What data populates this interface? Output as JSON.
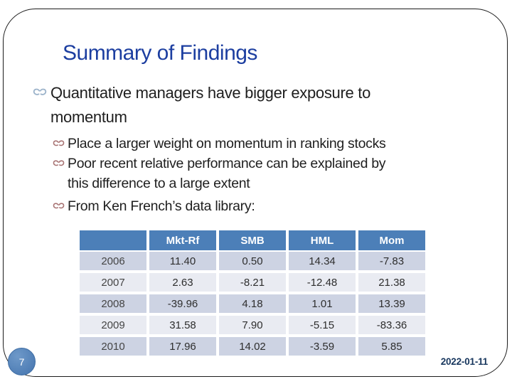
{
  "slide": {
    "title": "Summary of Findings",
    "bullets": [
      {
        "level": 1,
        "lines": [
          "Quantitative managers have bigger exposure to",
          "momentum"
        ]
      },
      {
        "level": 2,
        "lines": [
          "Place a larger weight on momentum in ranking stocks"
        ]
      },
      {
        "level": 2,
        "lines": [
          "Poor recent relative performance can be explained by",
          "this difference to a large extent"
        ]
      },
      {
        "level": 2,
        "lines": [
          "From Ken French’s data library:"
        ]
      }
    ],
    "footer": {
      "page_number": "7",
      "date": "2022-01-11"
    }
  },
  "table": {
    "columns": [
      "",
      "Mkt-Rf",
      "SMB",
      "HML",
      "Mom"
    ],
    "rows": [
      {
        "year": "2006",
        "values": [
          "11.40",
          "0.50",
          "14.34",
          "-7.83"
        ]
      },
      {
        "year": "2007",
        "values": [
          "2.63",
          "-8.21",
          "-12.48",
          "21.38"
        ]
      },
      {
        "year": "2008",
        "values": [
          "-39.96",
          "4.18",
          "1.01",
          "13.39"
        ]
      },
      {
        "year": "2009",
        "values": [
          "31.58",
          "7.90",
          "-5.15",
          "-83.36"
        ]
      },
      {
        "year": "2010",
        "values": [
          "17.96",
          "14.02",
          "-3.59",
          "5.85"
        ]
      }
    ]
  },
  "icons": {
    "bullet_level1": "double-curl-bullet",
    "bullet_level2": "double-curl-bullet"
  },
  "colors": {
    "title_blue": "#1c3ea0",
    "table_header_blue": "#4c7fb8",
    "row_dark": "#cdd3e3",
    "row_light": "#e9ebf2",
    "bullet_level1": "#9db4cb",
    "bullet_level2": "#a97575",
    "date_navy": "#17365d",
    "page_badge_blue": "#4474ae"
  }
}
